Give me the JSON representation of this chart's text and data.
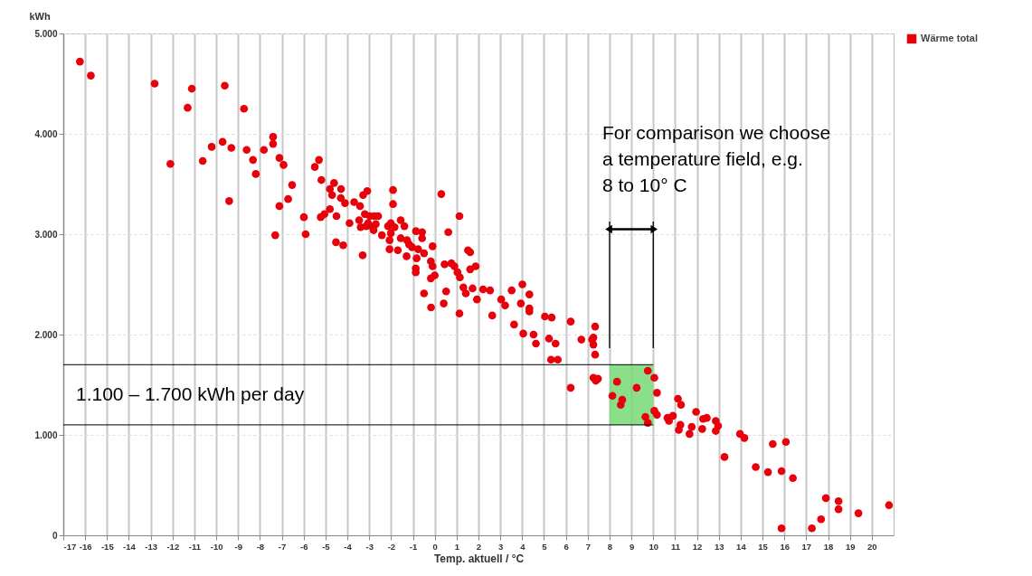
{
  "chart_data": {
    "type": "scatter",
    "xlabel": "Temp. aktuell / °C",
    "ylabel": "kWh",
    "xlim": [
      -17,
      21
    ],
    "ylim": [
      0,
      5000
    ],
    "xticks": [
      -17,
      -16,
      -15,
      -14,
      -13,
      -12,
      -11,
      -10,
      -9,
      -8,
      -7,
      -6,
      -5,
      -4,
      -3,
      -2,
      -1,
      0,
      1,
      2,
      3,
      4,
      5,
      6,
      7,
      8,
      9,
      10,
      11,
      12,
      13,
      14,
      15,
      16,
      17,
      18,
      19,
      20
    ],
    "yticks": [
      0,
      {
        "value": 1000,
        "label": "1.000"
      },
      {
        "value": 2000,
        "label": "2.000"
      },
      {
        "value": 3000,
        "label": "3.000"
      },
      {
        "value": 4000,
        "label": "4.000"
      },
      {
        "value": 5000,
        "label": "5.000"
      }
    ],
    "grid": true,
    "legend": "top right",
    "marker": "circle",
    "series": [
      {
        "name": "Wärme total",
        "color": "#e8000a",
        "x": [
          -16.24,
          -15.74,
          -12.82,
          -11.12,
          -11.31,
          -9.61,
          -8.73,
          -7.4,
          -7.4,
          -9.71,
          -10.21,
          -9.31,
          -8.61,
          -7.82,
          -10.62,
          -12.1,
          -8.32,
          -8.19,
          -7.11,
          -6.92,
          -9.41,
          -7.11,
          -7.3,
          -6.71,
          -6.53,
          -5.99,
          -5.91,
          -5.3,
          -5.49,
          -5.19,
          -4.61,
          -4.8,
          -4.29,
          -4.7,
          -4.3,
          -4.11,
          -4.8,
          -5.05,
          -5.22,
          -4.5,
          -3.9,
          -4.52,
          -4.19,
          -3.69,
          -3.42,
          -3.28,
          -3.09,
          -3.3,
          -3.2,
          -2.97,
          -2.77,
          -2.59,
          -3.46,
          -3.05,
          -3.39,
          -3.14,
          -2.84,
          -2.7,
          -2.8,
          -1.91,
          -1.91,
          -2.42,
          -2.14,
          -2.01,
          -1.84,
          -1.56,
          -1.39,
          -2.01,
          -2.07,
          -2.07,
          -1.69,
          -1.56,
          -1.27,
          -1.18,
          -1.29,
          -0.86,
          -0.58,
          -1.04,
          -0.76,
          -0.58,
          -0.83,
          -0.87,
          -0.87,
          -0.49,
          -0.1,
          -0.18,
          -0.1,
          0.0,
          -0.18,
          -0.49,
          -0.17,
          0.3,
          0.62,
          1.13,
          0.45,
          0.76,
          0.9,
          1.04,
          1.15,
          0.52,
          0.41,
          1.13,
          1.52,
          1.62,
          1.62,
          1.87,
          1.31,
          1.73,
          1.93,
          1.42,
          2.21,
          2.53,
          2.63,
          3.04,
          3.22,
          3.52,
          4.01,
          4.33,
          3.94,
          4.33,
          4.33,
          3.63,
          4.05,
          4.52,
          4.63,
          5.04,
          5.35,
          5.23,
          5.53,
          5.32,
          5.63,
          6.22,
          6.22,
          6.71,
          7.2,
          7.26,
          7.34,
          7.26,
          7.34,
          7.26,
          7.37,
          7.47,
          8.13,
          8.34,
          8.58,
          8.51,
          9.75,
          10.05,
          9.24,
          10.17,
          10.05,
          10.17,
          9.64,
          9.75,
          11.13,
          11.27,
          11.96,
          10.65,
          10.9,
          10.72,
          11.24,
          11.17,
          11.66,
          11.76,
          12.28,
          12.45,
          12.24,
          12.86,
          12.97,
          12.86,
          13.26,
          13.97,
          14.17,
          14.69,
          15.25,
          15.47,
          16.07,
          15.87,
          16.39,
          15.87,
          17.26,
          17.68,
          17.9,
          18.48,
          18.48,
          19.39,
          20.79
        ],
        "values": [
          4720,
          4580,
          4500,
          4450,
          4260,
          4480,
          4250,
          3970,
          3900,
          3920,
          3870,
          3860,
          3840,
          3840,
          3730,
          3700,
          3740,
          3600,
          3760,
          3690,
          3330,
          3280,
          2990,
          3350,
          3490,
          3170,
          3000,
          3740,
          3670,
          3540,
          3510,
          3450,
          3450,
          3390,
          3360,
          3310,
          3250,
          3200,
          3170,
          3180,
          3110,
          2920,
          2890,
          3320,
          3280,
          3390,
          3430,
          2790,
          3200,
          3180,
          3180,
          3180,
          3140,
          3110,
          3070,
          3080,
          3070,
          3100,
          3040,
          3440,
          3300,
          2990,
          3080,
          3110,
          3070,
          3140,
          3080,
          3010,
          2940,
          2850,
          2840,
          2960,
          2940,
          2900,
          2780,
          3030,
          3020,
          2870,
          2850,
          2960,
          2760,
          2660,
          2620,
          2810,
          2880,
          2730,
          2680,
          2590,
          2560,
          2410,
          2270,
          3400,
          3020,
          3180,
          2700,
          2710,
          2680,
          2620,
          2570,
          2430,
          2310,
          2210,
          2840,
          2820,
          2650,
          2680,
          2470,
          2460,
          2350,
          2410,
          2450,
          2440,
          2190,
          2350,
          2290,
          2440,
          2500,
          2400,
          2310,
          2260,
          2230,
          2100,
          2010,
          2000,
          1910,
          2180,
          2170,
          1960,
          1910,
          1750,
          1750,
          2130,
          1470,
          1950,
          1950,
          1970,
          2080,
          1900,
          1800,
          1570,
          1540,
          1560,
          1390,
          1530,
          1350,
          1300,
          1640,
          1570,
          1470,
          1420,
          1240,
          1200,
          1180,
          1120,
          1360,
          1300,
          1230,
          1170,
          1190,
          1140,
          1100,
          1050,
          1010,
          1080,
          1160,
          1170,
          1060,
          1140,
          1090,
          1040,
          780,
          1010,
          970,
          680,
          630,
          910,
          930,
          640,
          570,
          70,
          70,
          160,
          370,
          340,
          260,
          220,
          300
        ]
      }
    ],
    "bands": [
      {
        "axis": "y",
        "from": 1100,
        "to": 1700,
        "label": "1.100 – 1.700 kWh per day",
        "color": "#77d977"
      }
    ],
    "ref_lines": [
      {
        "axis": "x",
        "value": 8
      },
      {
        "axis": "x",
        "value": 10
      }
    ],
    "annotations": [
      "For comparison we choose\na temperature field, e.g.\n8 to 10° C"
    ]
  }
}
